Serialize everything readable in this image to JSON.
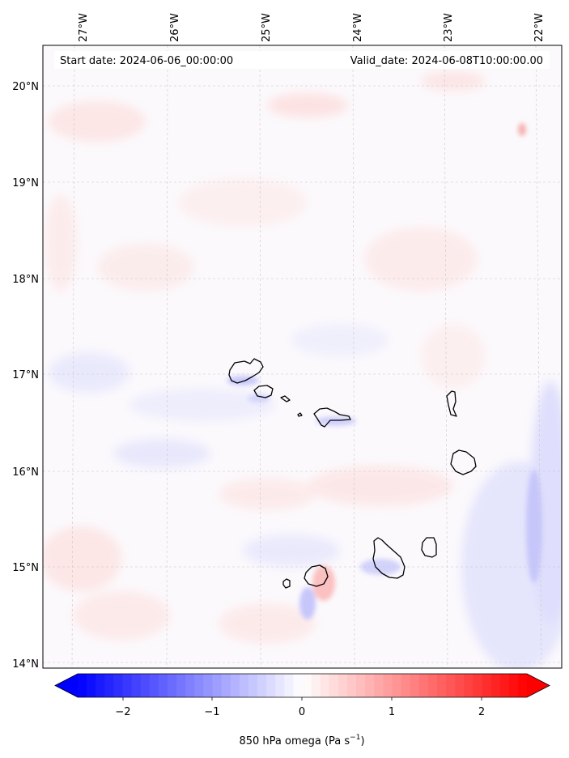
{
  "map": {
    "start_label": "Start date: 2024-06-06_00:00:00",
    "valid_label": "Valid_date: 2024-06-08T10:00:00.00",
    "lon_ticks": [
      "27°W",
      "26°W",
      "25°W",
      "24°W",
      "23°W",
      "22°W"
    ],
    "lat_ticks": [
      "20°N",
      "19°N",
      "18°N",
      "17°N",
      "16°N",
      "15°N",
      "14°N"
    ],
    "field": "850 hPa omega",
    "islands": [
      "Santo Antão",
      "São Vicente",
      "Santa Luzia",
      "Branco",
      "São Nicolau",
      "Sal",
      "Boa Vista",
      "Maio",
      "Santiago",
      "Fogo",
      "Brava"
    ]
  },
  "colorbar": {
    "label_main": "850 hPa omega (Pa s",
    "label_sup": "−1",
    "label_tail": ")",
    "ticks": [
      "−2",
      "−1",
      "0",
      "1",
      "2"
    ],
    "min": -2.5,
    "max": 2.5,
    "colors": {
      "low": "#0000ff",
      "mid": "#ffffff",
      "high": "#ff0000"
    }
  }
}
